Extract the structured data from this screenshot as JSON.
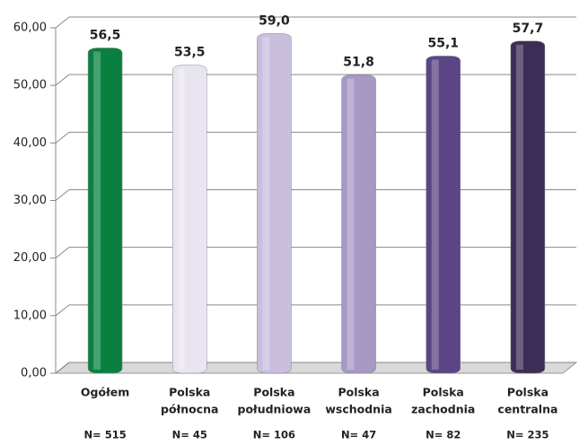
{
  "chart_data": {
    "type": "bar",
    "categories": [
      [
        "Ogółem"
      ],
      [
        "Polska",
        "północna"
      ],
      [
        "Polska",
        "południowa"
      ],
      [
        "Polska",
        "wschodnia"
      ],
      [
        "Polska",
        "zachodnia"
      ],
      [
        "Polska",
        "centralna"
      ]
    ],
    "sample_sizes": [
      "N= 515",
      "N= 45",
      "N= 106",
      "N= 47",
      "N= 82",
      "N= 235"
    ],
    "values": [
      56.5,
      53.5,
      59.0,
      51.8,
      55.1,
      57.7
    ],
    "value_labels": [
      "56,5",
      "53,5",
      "59,0",
      "51,8",
      "55,1",
      "57,7"
    ],
    "colors": [
      "#0a8040",
      "#e8e4f0",
      "#c9bedd",
      "#a798c4",
      "#5b4585",
      "#3c2d57"
    ],
    "ylim": [
      0,
      60
    ],
    "yticks": [
      {
        "value": 0,
        "label": "0,00"
      },
      {
        "value": 10,
        "label": "10,00"
      },
      {
        "value": 20,
        "label": "20,00"
      },
      {
        "value": 30,
        "label": "30,00"
      },
      {
        "value": 40,
        "label": "40,00"
      },
      {
        "value": 50,
        "label": "50,00"
      },
      {
        "value": 60,
        "label": "60,00"
      }
    ],
    "grid": true
  }
}
